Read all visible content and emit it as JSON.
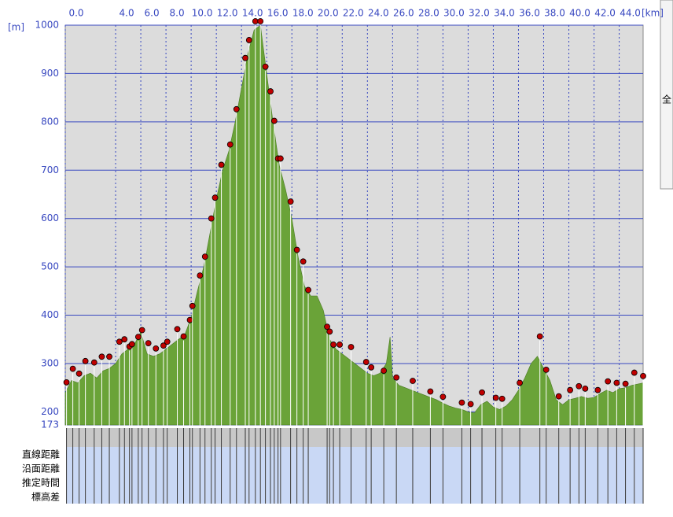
{
  "chart_data": {
    "type": "area",
    "y_label": "[m]",
    "x_label": "[km]",
    "xlim": [
      0,
      45.9
    ],
    "ylim": [
      173,
      1000
    ],
    "xticks": [
      {
        "value": 0,
        "label": "0.0"
      },
      {
        "value": 4,
        "label": "4.0"
      },
      {
        "value": 6,
        "label": "6.0"
      },
      {
        "value": 8,
        "label": "8.0"
      },
      {
        "value": 10,
        "label": "10.0"
      },
      {
        "value": 12,
        "label": "12.0"
      },
      {
        "value": 14,
        "label": "14.0"
      },
      {
        "value": 16,
        "label": "16.0"
      },
      {
        "value": 18,
        "label": "18.0"
      },
      {
        "value": 20,
        "label": "20.0"
      },
      {
        "value": 22,
        "label": "22.0"
      },
      {
        "value": 24,
        "label": "24.0"
      },
      {
        "value": 26,
        "label": "26.0"
      },
      {
        "value": 28,
        "label": "28.0"
      },
      {
        "value": 30,
        "label": "30.0"
      },
      {
        "value": 32,
        "label": "32.0"
      },
      {
        "value": 34,
        "label": "34.0"
      },
      {
        "value": 36,
        "label": "36.0"
      },
      {
        "value": 38,
        "label": "38.0"
      },
      {
        "value": 40,
        "label": "40.0"
      },
      {
        "value": 42,
        "label": "42.0"
      },
      {
        "value": 44,
        "label": "44.0"
      }
    ],
    "yticks": [
      173,
      200,
      300,
      400,
      500,
      600,
      700,
      800,
      900,
      1000
    ],
    "grid": true,
    "color": "#6aa338",
    "background": "#dcdcdc",
    "grid_color": "#3848c0",
    "x": [
      0,
      0.5,
      1,
      1.5,
      2,
      2.5,
      3,
      3.5,
      4,
      4.5,
      5,
      5.5,
      6,
      6.5,
      7,
      7.5,
      8,
      8.5,
      9,
      9.5,
      10,
      10.5,
      11,
      11.5,
      12,
      12.5,
      13,
      13.5,
      14,
      14.5,
      15,
      15.5,
      16,
      16.5,
      17,
      17.5,
      18,
      18.5,
      19,
      19.5,
      20,
      20.5,
      21,
      21.5,
      22,
      22.5,
      23,
      23.5,
      24,
      24.5,
      25,
      25.5,
      25.8,
      26,
      26.5,
      27,
      27.5,
      28,
      28.5,
      29,
      29.5,
      30,
      30.5,
      31,
      31.5,
      32,
      32.5,
      33,
      33.5,
      34,
      34.5,
      35,
      35.5,
      36,
      36.5,
      37,
      37.5,
      38,
      38.5,
      39,
      39.5,
      40,
      40.5,
      41,
      41.5,
      42,
      42.5,
      43,
      43.5,
      44,
      44.5,
      45,
      45.9
    ],
    "values": [
      240,
      265,
      260,
      275,
      280,
      270,
      285,
      290,
      300,
      320,
      330,
      340,
      365,
      320,
      315,
      320,
      330,
      340,
      350,
      360,
      395,
      450,
      500,
      570,
      640,
      700,
      740,
      800,
      870,
      940,
      990,
      1000,
      900,
      800,
      710,
      660,
      600,
      520,
      460,
      440,
      440,
      410,
      350,
      330,
      320,
      310,
      300,
      290,
      280,
      275,
      280,
      300,
      355,
      270,
      255,
      250,
      245,
      240,
      235,
      230,
      225,
      218,
      212,
      208,
      205,
      200,
      198,
      215,
      222,
      210,
      205,
      212,
      225,
      245,
      270,
      300,
      315,
      290,
      265,
      225,
      215,
      225,
      228,
      232,
      228,
      230,
      238,
      245,
      240,
      248,
      250,
      255,
      260
    ],
    "waypoints": {
      "color": "#c00000",
      "x": [
        0.1,
        0.6,
        1.1,
        1.6,
        2.3,
        2.9,
        3.5,
        4.3,
        4.7,
        5.1,
        5.3,
        5.8,
        6.1,
        6.6,
        7.2,
        7.8,
        8.1,
        8.9,
        9.4,
        9.9,
        10.1,
        10.7,
        11.1,
        11.6,
        11.9,
        12.4,
        13.1,
        13.6,
        14.3,
        14.6,
        15.1,
        15.5,
        15.9,
        16.3,
        16.6,
        16.9,
        17.1,
        17.9,
        18.4,
        18.9,
        19.3,
        20.8,
        21.0,
        21.3,
        21.8,
        22.7,
        23.9,
        24.3,
        25.3,
        26.3,
        27.6,
        29.0,
        30.0,
        31.5,
        32.2,
        33.1,
        34.2,
        34.7,
        36.1,
        37.7,
        38.2,
        39.2,
        40.1,
        40.8,
        41.3,
        42.3,
        43.1,
        43.8,
        44.5,
        45.2,
        45.9
      ],
      "values": [
        253,
        281,
        271,
        297,
        294,
        306,
        306,
        337,
        342,
        327,
        332,
        347,
        361,
        334,
        323,
        329,
        337,
        363,
        348,
        382,
        411,
        474,
        513,
        592,
        635,
        703,
        745,
        818,
        924,
        961,
        1000,
        1000,
        906,
        855,
        794,
        716,
        716,
        627,
        527,
        503,
        444,
        368,
        358,
        331,
        331,
        326,
        295,
        284,
        277,
        263,
        256,
        234,
        223,
        211,
        208,
        232,
        221,
        219,
        252,
        348,
        279,
        224,
        237,
        245,
        240,
        237,
        255,
        252,
        250,
        273,
        266
      ]
    }
  },
  "table": {
    "row_labels": [
      "直線距離",
      "沿面距離",
      "推定時間",
      "標高差"
    ]
  },
  "side_button": "全"
}
